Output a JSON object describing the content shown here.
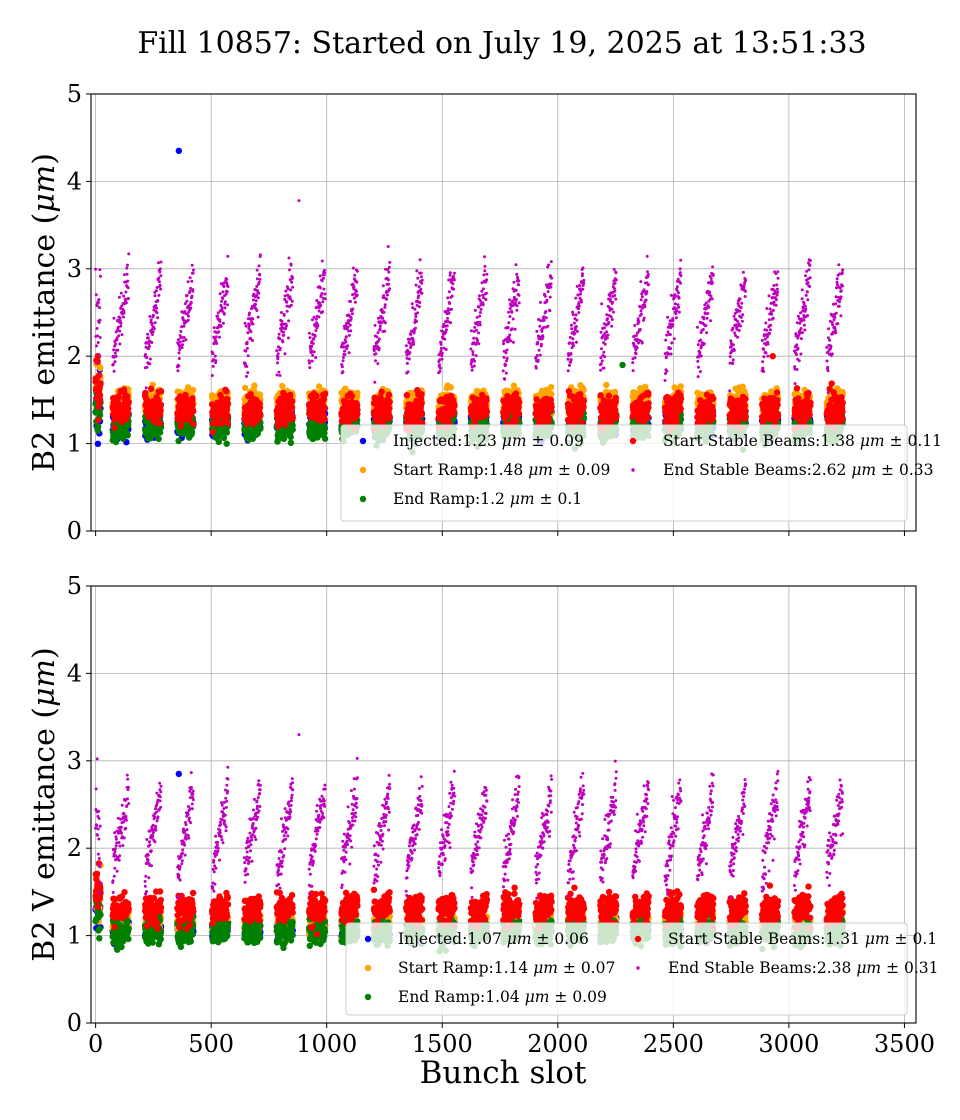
{
  "figure": {
    "title": "Fill 10857: Started on July 19, 2025 at 13:51:33",
    "xlabel": "Bunch slot"
  },
  "chart_data": [
    {
      "type": "scatter",
      "panel": "top",
      "ylabel_prefix": "B2 H emittance (",
      "ylabel_unit": "μm",
      "ylabel_suffix": ")",
      "xlim": [
        -20,
        3550
      ],
      "ylim": [
        0,
        5
      ],
      "x_ticks": [
        0,
        500,
        1000,
        1500,
        2000,
        2500,
        3000,
        3500
      ],
      "y_ticks": [
        0,
        1,
        2,
        3,
        4,
        5
      ],
      "show_x_tick_labels": false,
      "grid": true,
      "legend_position": "lower-right",
      "train_starts": [
        0,
        70,
        210,
        350,
        500,
        640,
        780,
        920,
        1060,
        1200,
        1340,
        1480,
        1620,
        1760,
        1900,
        2040,
        2180,
        2320,
        2460,
        2600,
        2740,
        2880,
        3020,
        3160
      ],
      "train_length": 70,
      "series": [
        {
          "name": "Injected",
          "color": "#0000ff",
          "mean": 1.23,
          "std": 0.09,
          "marker_size": 3.2,
          "trend_amp": 0.1
        },
        {
          "name": "Start Ramp",
          "color": "#ffa500",
          "mean": 1.48,
          "std": 0.09,
          "marker_size": 3.2,
          "trend_amp": 0.1
        },
        {
          "name": "End Ramp",
          "color": "#008000",
          "mean": 1.2,
          "std": 0.1,
          "marker_size": 3.2,
          "trend_amp": 0.1
        },
        {
          "name": "Start Stable Beams",
          "color": "#ff0000",
          "mean": 1.38,
          "std": 0.11,
          "marker_size": 3.2,
          "trend_amp": 0.1
        },
        {
          "name": "End Stable Beams",
          "color": "#bf00bf",
          "mean": 2.62,
          "std": 0.33,
          "marker_size": 1.5,
          "trend_amp": 0.75
        }
      ],
      "legend": [
        {
          "label": "Injected:1.23 ",
          "unit": "μm",
          "stat": " ± 0.09"
        },
        {
          "label": "Start Ramp:1.48 ",
          "unit": "μm",
          "stat": " ± 0.09"
        },
        {
          "label": "End Ramp:1.2 ",
          "unit": "μm",
          "stat": " ± 0.1"
        },
        {
          "label": "Start Stable Beams:1.38 ",
          "unit": "μm",
          "stat": " ± 0.11"
        },
        {
          "label": "End Stable Beams:2.62 ",
          "unit": "μm",
          "stat": " ± 0.33"
        }
      ],
      "outliers": [
        {
          "x": 360,
          "y": 4.35,
          "series": "Injected"
        },
        {
          "x": 880,
          "y": 3.78,
          "series": "End Stable Beams"
        },
        {
          "x": 2930,
          "y": 2.0,
          "series": "Start Stable Beams"
        },
        {
          "x": 2280,
          "y": 1.9,
          "series": "End Ramp"
        }
      ]
    },
    {
      "type": "scatter",
      "panel": "bottom",
      "ylabel_prefix": "B2 V emittance (",
      "ylabel_unit": "μm",
      "ylabel_suffix": ")",
      "xlim": [
        -20,
        3550
      ],
      "ylim": [
        0,
        5
      ],
      "x_ticks": [
        0,
        500,
        1000,
        1500,
        2000,
        2500,
        3000,
        3500
      ],
      "y_ticks": [
        0,
        1,
        2,
        3,
        4,
        5
      ],
      "show_x_tick_labels": true,
      "grid": true,
      "legend_position": "lower-right",
      "train_starts": [
        0,
        70,
        210,
        350,
        500,
        640,
        780,
        920,
        1060,
        1200,
        1340,
        1480,
        1620,
        1760,
        1900,
        2040,
        2180,
        2320,
        2460,
        2600,
        2740,
        2880,
        3020,
        3160
      ],
      "train_length": 70,
      "series": [
        {
          "name": "Injected",
          "color": "#0000ff",
          "mean": 1.07,
          "std": 0.06,
          "marker_size": 3.2,
          "trend_amp": 0.08
        },
        {
          "name": "Start Ramp",
          "color": "#ffa500",
          "mean": 1.14,
          "std": 0.07,
          "marker_size": 3.2,
          "trend_amp": 0.08
        },
        {
          "name": "End Ramp",
          "color": "#008000",
          "mean": 1.04,
          "std": 0.09,
          "marker_size": 3.2,
          "trend_amp": 0.08
        },
        {
          "name": "Start Stable Beams",
          "color": "#ff0000",
          "mean": 1.31,
          "std": 0.1,
          "marker_size": 3.2,
          "trend_amp": 0.1
        },
        {
          "name": "End Stable Beams",
          "color": "#bf00bf",
          "mean": 2.38,
          "std": 0.31,
          "marker_size": 1.5,
          "trend_amp": 0.75
        }
      ],
      "legend": [
        {
          "label": "Injected:1.07 ",
          "unit": "μm",
          "stat": " ± 0.06"
        },
        {
          "label": "Start Ramp:1.14 ",
          "unit": "μm",
          "stat": " ± 0.07"
        },
        {
          "label": "End Ramp:1.04 ",
          "unit": "μm",
          "stat": " ± 0.09"
        },
        {
          "label": "Start Stable Beams:1.31 ",
          "unit": "μm",
          "stat": " ± 0.1"
        },
        {
          "label": "End Stable Beams:2.38 ",
          "unit": "μm",
          "stat": " ± 0.31"
        }
      ],
      "outliers": [
        {
          "x": 360,
          "y": 2.85,
          "series": "Injected"
        },
        {
          "x": 880,
          "y": 3.3,
          "series": "End Stable Beams"
        }
      ]
    }
  ]
}
